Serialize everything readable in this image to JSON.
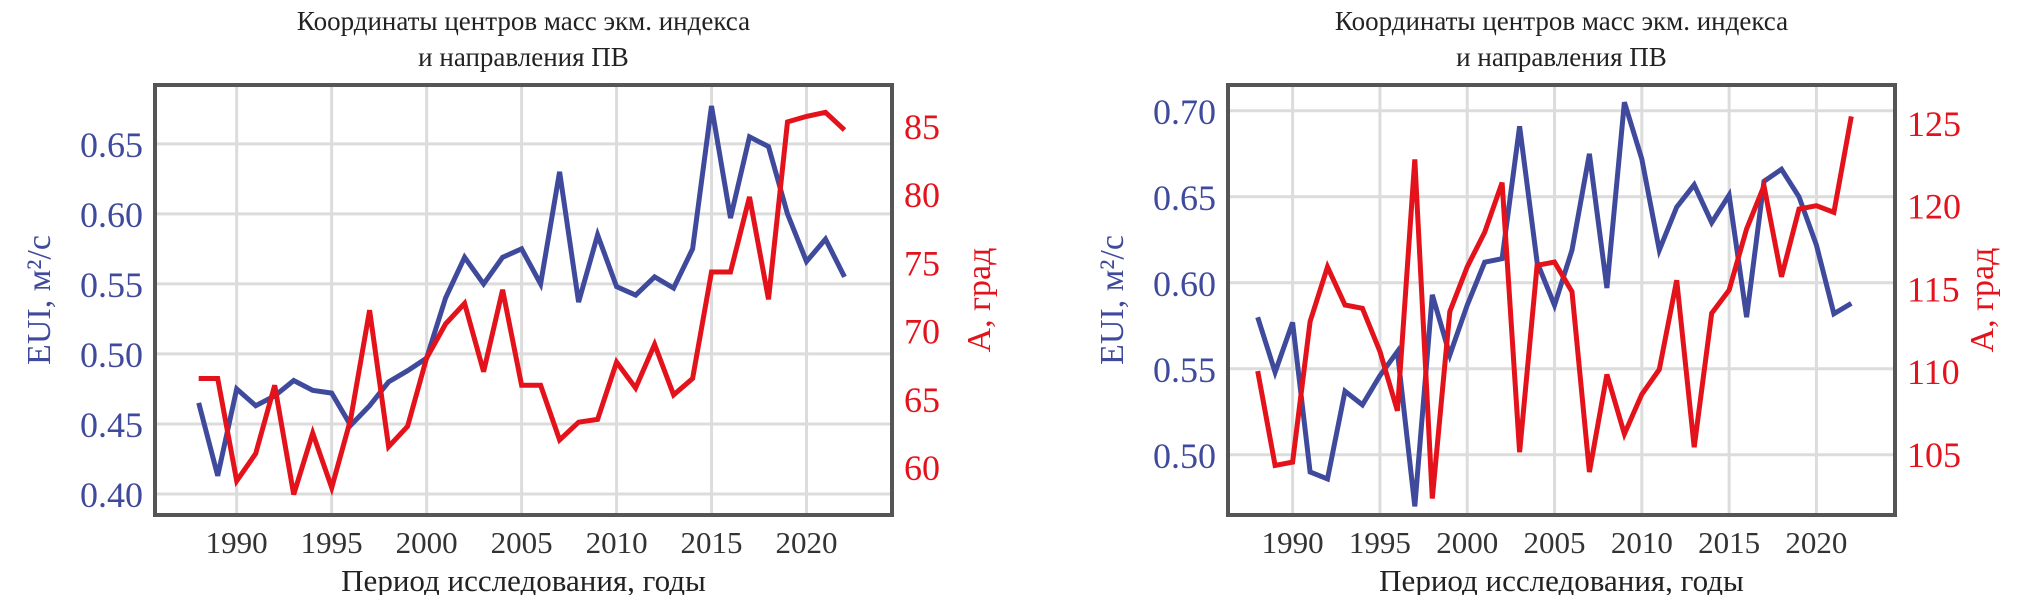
{
  "chart_data": [
    {
      "type": "line",
      "title": [
        "Координаты центров масс экм. индекса",
        "и направления ПВ"
      ],
      "xlabel": "Период исследования, годы",
      "ylabel_left": "EUI, м²/с",
      "ylabel_right": "A, град",
      "x": [
        1988,
        1989,
        1990,
        1991,
        1992,
        1993,
        1994,
        1995,
        1996,
        1997,
        1998,
        1999,
        2000,
        2001,
        2002,
        2003,
        2004,
        2005,
        2006,
        2007,
        2008,
        2009,
        2010,
        2011,
        2012,
        2013,
        2014,
        2015,
        2016,
        2017,
        2018,
        2019,
        2020,
        2021,
        2022
      ],
      "xticks": [
        1990,
        1995,
        2000,
        2005,
        2010,
        2015,
        2020
      ],
      "xlim": [
        1985.7,
        2024.5
      ],
      "ylim_left": [
        0.385,
        0.692
      ],
      "yticks_left": [
        "0.40",
        "0.45",
        "0.50",
        "0.55",
        "0.60",
        "0.65"
      ],
      "ylim_right": [
        56.5,
        88
      ],
      "yticks_right": [
        "60",
        "65",
        "70",
        "75",
        "80",
        "85"
      ],
      "grid": true,
      "colors": {
        "left": "#3f4a9c",
        "right": "#e3121b",
        "axis": "#555555",
        "grid": "#dcdcdc"
      },
      "series": [
        {
          "axis": "left",
          "values": [
            0.465,
            0.413,
            0.475,
            0.463,
            0.47,
            0.481,
            0.474,
            0.472,
            0.449,
            0.463,
            0.48,
            0.488,
            0.497,
            0.54,
            0.569,
            0.55,
            0.569,
            0.575,
            0.55,
            0.63,
            0.537,
            0.585,
            0.548,
            0.542,
            0.555,
            0.547,
            0.575,
            0.677,
            0.597,
            0.655,
            0.648,
            0.6,
            0.566,
            0.582,
            0.555
          ]
        },
        {
          "axis": "right",
          "values": [
            66.5,
            66.5,
            59.0,
            61.0,
            66.0,
            58.0,
            62.5,
            58.5,
            63.5,
            71.5,
            61.5,
            63.0,
            68.0,
            70.5,
            72.0,
            67.0,
            73.0,
            66.0,
            66.0,
            62.0,
            63.3,
            63.5,
            67.7,
            65.8,
            69.0,
            65.3,
            66.5,
            74.3,
            74.3,
            79.8,
            72.3,
            85.3,
            85.7,
            86.0,
            84.7
          ]
        }
      ]
    },
    {
      "type": "line",
      "title": [
        "Координаты центров масс экм. индекса",
        "и направления ПВ"
      ],
      "xlabel": "Период исследования, годы",
      "ylabel_left": "EUI, м²/с",
      "ylabel_right": "A, град",
      "x": [
        1988,
        1989,
        1990,
        1991,
        1992,
        1993,
        1994,
        1995,
        1996,
        1997,
        1998,
        1999,
        2000,
        2001,
        2002,
        2003,
        2004,
        2005,
        2006,
        2007,
        2008,
        2009,
        2010,
        2011,
        2012,
        2013,
        2014,
        2015,
        2016,
        2017,
        2018,
        2019,
        2020,
        2021,
        2022
      ],
      "xticks": [
        1990,
        1995,
        2000,
        2005,
        2010,
        2015,
        2020
      ],
      "xlim": [
        1986.3,
        2024.5
      ],
      "ylim_left": [
        0.465,
        0.715
      ],
      "yticks_left": [
        "0.50",
        "0.55",
        "0.60",
        "0.65",
        "0.70"
      ],
      "ylim_right": [
        101.3,
        127.3
      ],
      "yticks_right": [
        "105",
        "110",
        "115",
        "120",
        "125"
      ],
      "grid": true,
      "colors": {
        "left": "#3f4a9c",
        "right": "#e3121b",
        "axis": "#555555",
        "grid": "#dcdcdc"
      },
      "series": [
        {
          "axis": "left",
          "values": [
            0.58,
            0.548,
            0.577,
            0.49,
            0.486,
            0.537,
            0.529,
            0.546,
            0.56,
            0.47,
            0.593,
            0.558,
            0.587,
            0.612,
            0.614,
            0.691,
            0.612,
            0.587,
            0.619,
            0.675,
            0.597,
            0.705,
            0.672,
            0.619,
            0.644,
            0.657,
            0.635,
            0.651,
            0.58,
            0.659,
            0.666,
            0.65,
            0.622,
            0.582,
            0.588
          ]
        },
        {
          "axis": "right",
          "values": [
            110.0,
            104.3,
            104.5,
            113.0,
            116.3,
            114.0,
            113.8,
            111.2,
            107.6,
            122.8,
            102.3,
            113.6,
            116.3,
            118.4,
            121.4,
            105.1,
            116.4,
            116.6,
            114.8,
            103.9,
            109.8,
            106.2,
            108.6,
            110.1,
            115.5,
            105.4,
            113.5,
            114.9,
            118.6,
            121.2,
            115.7,
            119.8,
            120.0,
            119.6,
            125.4
          ]
        }
      ]
    }
  ]
}
